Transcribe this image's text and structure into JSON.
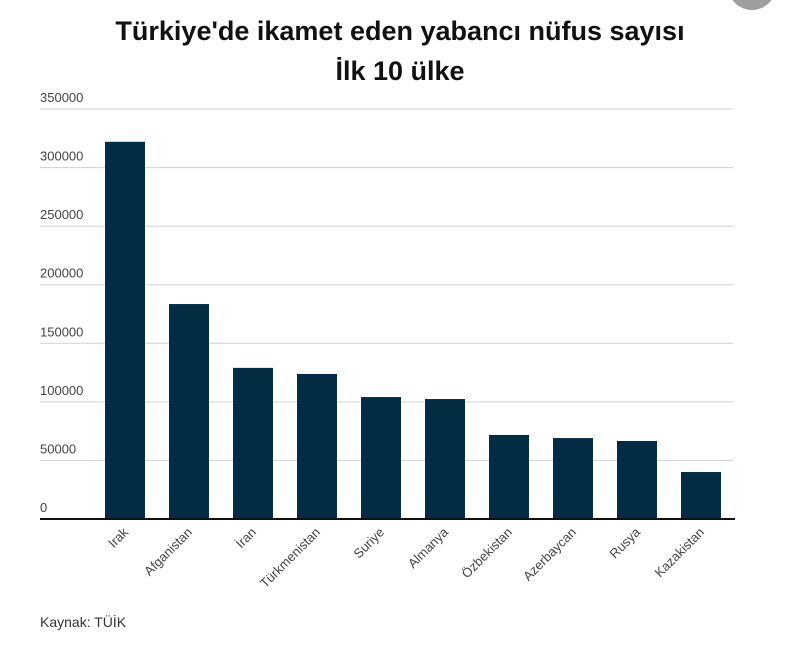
{
  "chart_data": {
    "type": "bar",
    "title": "Türkiye'de ikamet eden yabancı nüfus sayısı",
    "subtitle": "İlk 10 ülke",
    "categories": [
      "Irak",
      "Afganistan",
      "İran",
      "Türkmenistan",
      "Suriye",
      "Almanya",
      "Özbekistan",
      "Azerbaycan",
      "Rusya",
      "Kazakistan"
    ],
    "values": [
      322000,
      183500,
      129000,
      123800,
      104100,
      102400,
      71700,
      69100,
      66600,
      40100
    ],
    "color": "#022d44",
    "ylim": [
      0,
      350000
    ],
    "yticks": [
      0,
      50000,
      100000,
      150000,
      200000,
      250000,
      300000,
      350000
    ],
    "grid": true,
    "source": "Kaynak: TÜİK"
  }
}
